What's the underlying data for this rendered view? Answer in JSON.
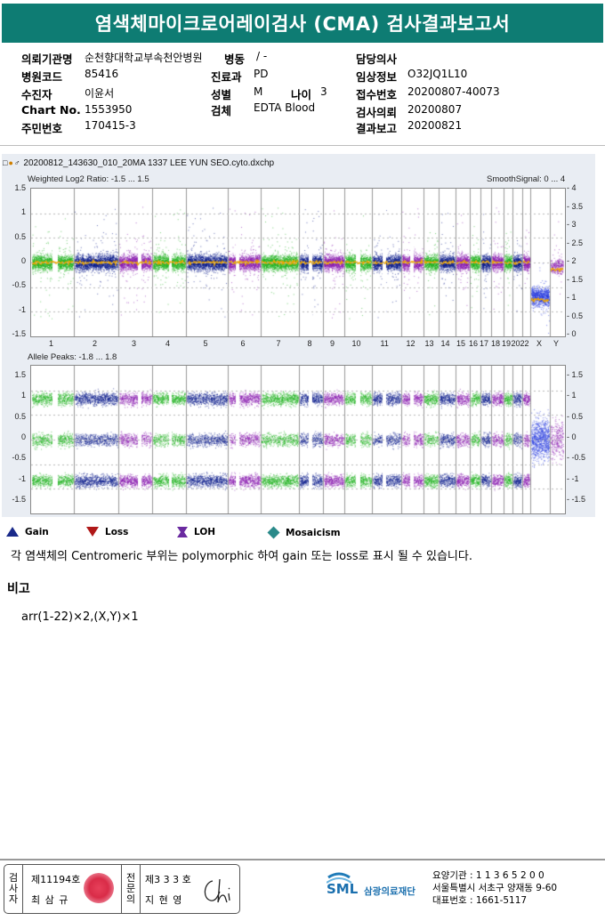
{
  "report": {
    "title": "염색체마이크로어레이검사 (CMA) 검사결과보고서"
  },
  "patient": {
    "institution_label": "의뢰기관명",
    "institution_value": "순천향대학교부속천안병원",
    "ward_label": "병동",
    "ward_value": "/ -",
    "doctor_label": "담당의사",
    "doctor_value": "",
    "hospital_code_label": "병원코드",
    "hospital_code_value": "85416",
    "dept_label": "진료과",
    "dept_value": "PD",
    "clinical_info_label": "임상정보",
    "clinical_info_value": "O32JQ1L10",
    "recipient_label": "수진자",
    "recipient_value": "이윤서",
    "sex_label": "성별",
    "sex_value": "M",
    "age_label": "나이",
    "age_value": "3",
    "accession_label": "접수번호",
    "accession_value": "20200807-40073",
    "chart_label": "Chart No.",
    "chart_value": "1553950",
    "specimen_label": "검체",
    "specimen_value": "EDTA Blood",
    "request_date_label": "검사의뢰",
    "request_date_value": "20200807",
    "id_label": "주민번호",
    "id_value": "170415-3",
    "report_date_label": "결과보고",
    "report_date_value": "20200821"
  },
  "plot": {
    "filename": "20200812_143630_010_20MA 1337 LEE YUN SEO.cyto.dxchp",
    "top_title": "Weighted Log2 Ratio: -1.5 ... 1.5",
    "top_right_title": "SmoothSignal: 0 ... 4",
    "top_left_ticks": [
      "1.5",
      "1",
      "0.5",
      "0",
      "-0.5",
      "-1",
      "-1.5"
    ],
    "top_right_ticks": [
      "4",
      "3.5",
      "3",
      "2.5",
      "2",
      "1.5",
      "1",
      "0.5",
      "0"
    ],
    "bottom_title": "Allele Peaks: -1.8 ... 1.8",
    "bottom_left_ticks": [
      "1.5",
      "1",
      "0.5",
      "0",
      "-0.5",
      "-1",
      "-1.5"
    ],
    "bottom_right_ticks": [
      "1.5",
      "1",
      "0.5",
      "0",
      "-0.5",
      "-1",
      "-1.5"
    ],
    "chromosome_labels": [
      "1",
      "2",
      "3",
      "4",
      "5",
      "6",
      "7",
      "8",
      "9",
      "10",
      "11",
      "12",
      "13",
      "14",
      "15",
      "16",
      "17",
      "18",
      "19",
      "20",
      "22",
      "X",
      "Y"
    ],
    "colors": {
      "green": "#22b422",
      "navy": "#0a1a8c",
      "purple": "#8a1ab0",
      "smooth": "#f0a800",
      "grid": "#999999",
      "x_blue": "#2a3ee0"
    }
  },
  "legend": [
    {
      "icon": "gain-triangle-up-icon",
      "label": "Gain",
      "color": "#1a2a8a"
    },
    {
      "icon": "loss-triangle-down-icon",
      "label": "Loss",
      "color": "#b01818"
    },
    {
      "icon": "loh-icon",
      "label": "LOH",
      "color": "#6a2aa0"
    },
    {
      "icon": "mosaicism-diamond-icon",
      "label": "Mosaicism",
      "color": "#2a8a8a"
    }
  ],
  "note": "각 염색체의 Centromeric 부위는 polymorphic 하여 gain 또는 loss로 표시 될 수 있습니다.",
  "remarks": {
    "heading": "비고",
    "karyotype": "arr(1-22)×2,(X,Y)×1"
  },
  "footer": {
    "tester_vertical": [
      "검",
      "사",
      "자"
    ],
    "tester_license": "제11194호",
    "tester_name": "최 삼 규",
    "pathologist_vertical": [
      "전",
      "문",
      "의"
    ],
    "pathologist_license": "제3 3 3 호",
    "pathologist_name": "지 현 영",
    "logo_text": "SML",
    "logo_name": "삼광의료재단",
    "org_line1": "요양기관 : 1 1 3 6 5 2 0 0",
    "org_line2": "서울특별시 서초구 양재동 9-60",
    "org_line3": "대표번호 : 1661-5117"
  }
}
